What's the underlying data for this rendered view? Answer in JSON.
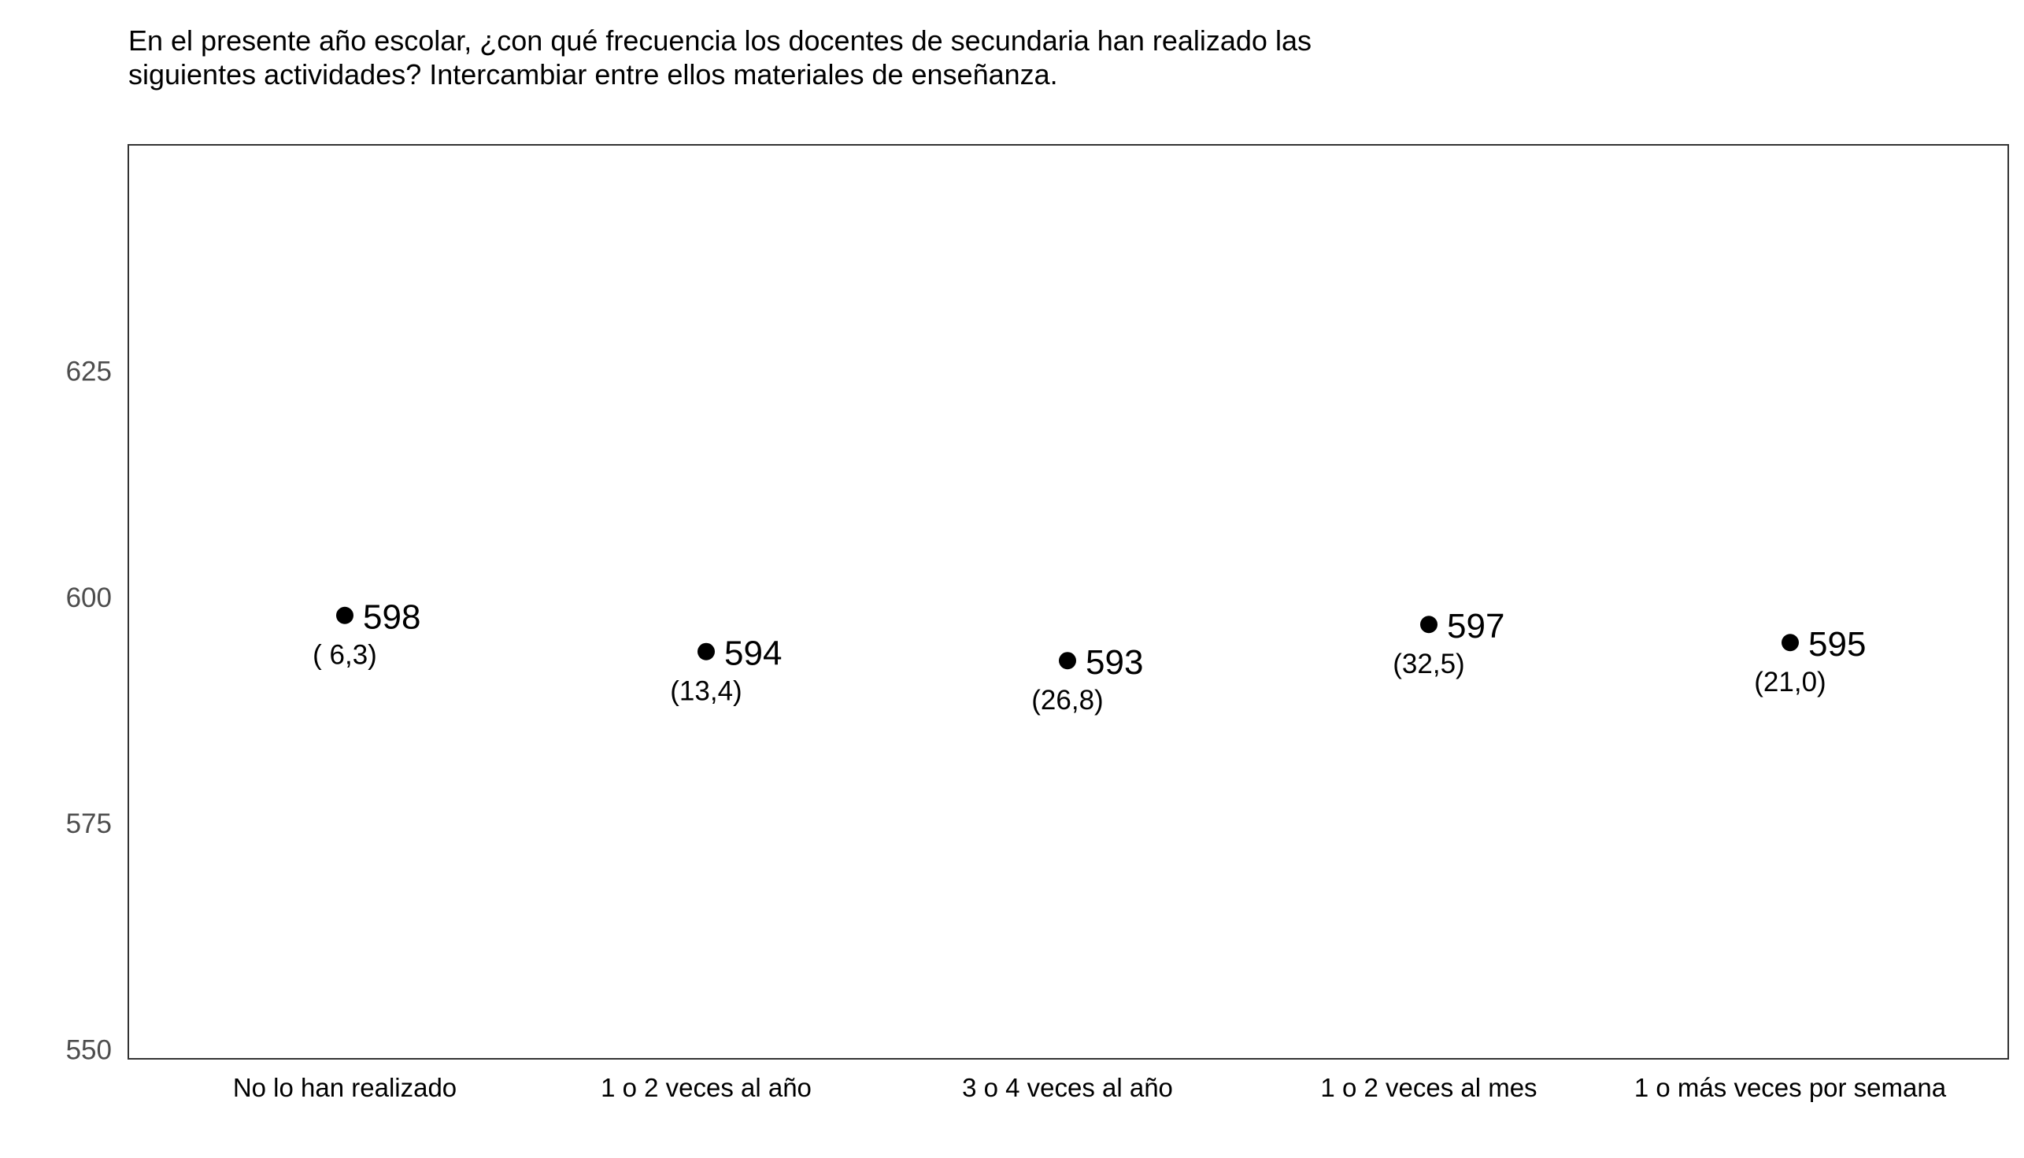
{
  "chart_data": {
    "type": "scatter",
    "title": "En el presente año escolar, ¿con qué frecuencia los docentes de secundaria han realizado las siguientes actividades? Intercambiar entre ellos materiales de enseñanza.",
    "xlabel": "",
    "ylabel": "",
    "categories": [
      "No lo han realizado",
      "1 o 2 veces al año",
      "3 o 4 veces al año",
      "1 o 2 veces al mes",
      "1 o más veces por semana"
    ],
    "values": [
      598,
      594,
      593,
      597,
      595
    ],
    "value_labels": [
      "598",
      "594",
      "593",
      "597",
      "595"
    ],
    "se_labels": [
      "( 6,3)",
      "(13,4)",
      "(26,8)",
      "(32,5)",
      "(21,0)"
    ],
    "ylim": [
      549,
      650
    ],
    "yticks": [
      550,
      575,
      600,
      625
    ],
    "ytick_labels": [
      "550",
      "575",
      "600",
      "625"
    ],
    "grid": false,
    "legend": "none",
    "colors": {
      "point": "#000000",
      "frame": "#333333",
      "tick_text": "#4d4d4d"
    }
  }
}
